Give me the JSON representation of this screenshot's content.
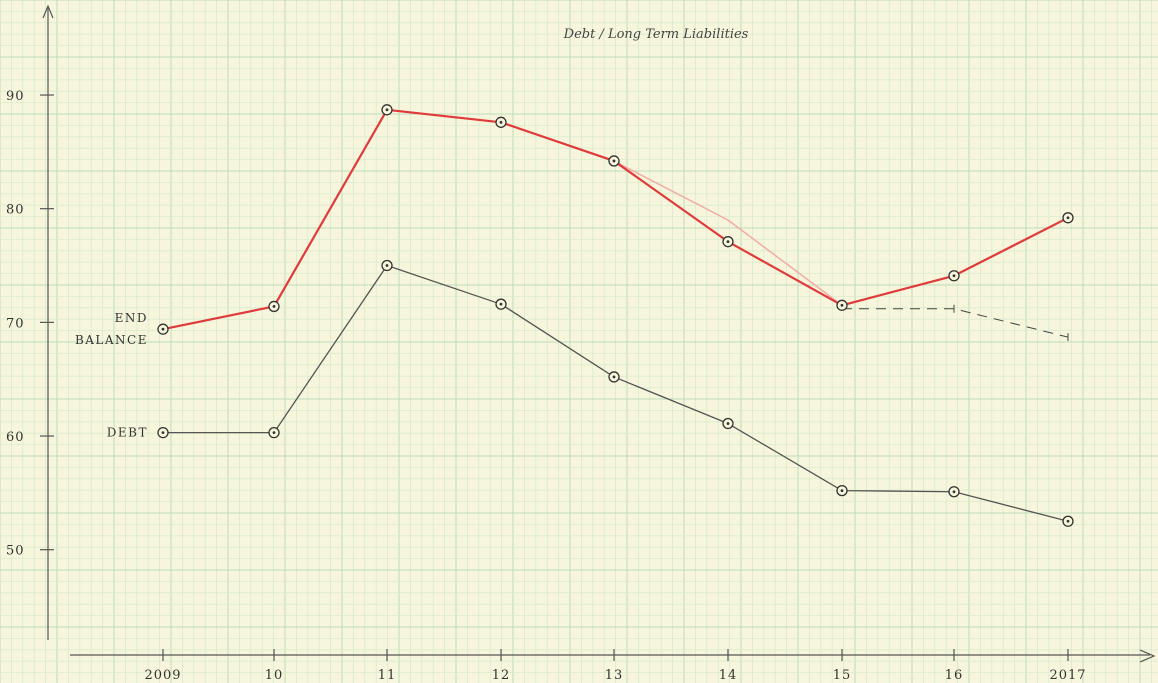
{
  "chart_data": {
    "type": "line",
    "title": "Debt / Long Term Liabilities",
    "categories": [
      "2009",
      "10",
      "11",
      "12",
      "13",
      "14",
      "15",
      "16",
      "2017"
    ],
    "yticks": [
      "50",
      "60",
      "70",
      "80",
      "90"
    ],
    "ylim": [
      41,
      101
    ],
    "grid": true,
    "series": [
      {
        "name": "END BALANCE",
        "label_lines": [
          "END",
          "BALANCE"
        ],
        "color": "#e03a3a",
        "values": [
          69.4,
          71.4,
          88.7,
          87.6,
          84.2,
          77.1,
          71.5,
          74.1,
          79.2
        ]
      },
      {
        "name": "DEBT",
        "label_lines": [
          "DEBT"
        ],
        "color": "#555555",
        "values": [
          60.3,
          60.3,
          75.0,
          71.6,
          65.2,
          61.1,
          55.2,
          55.1,
          52.5
        ]
      }
    ],
    "projection": {
      "style": "dashed",
      "color": "#444444",
      "x": [
        "15",
        "16",
        "2017"
      ],
      "values": [
        71.2,
        71.2,
        68.7
      ]
    },
    "draft_line": {
      "color": "#f0b0a8",
      "x": [
        "13",
        "14",
        "15"
      ],
      "values": [
        84.2,
        79.0,
        71.5
      ]
    }
  }
}
